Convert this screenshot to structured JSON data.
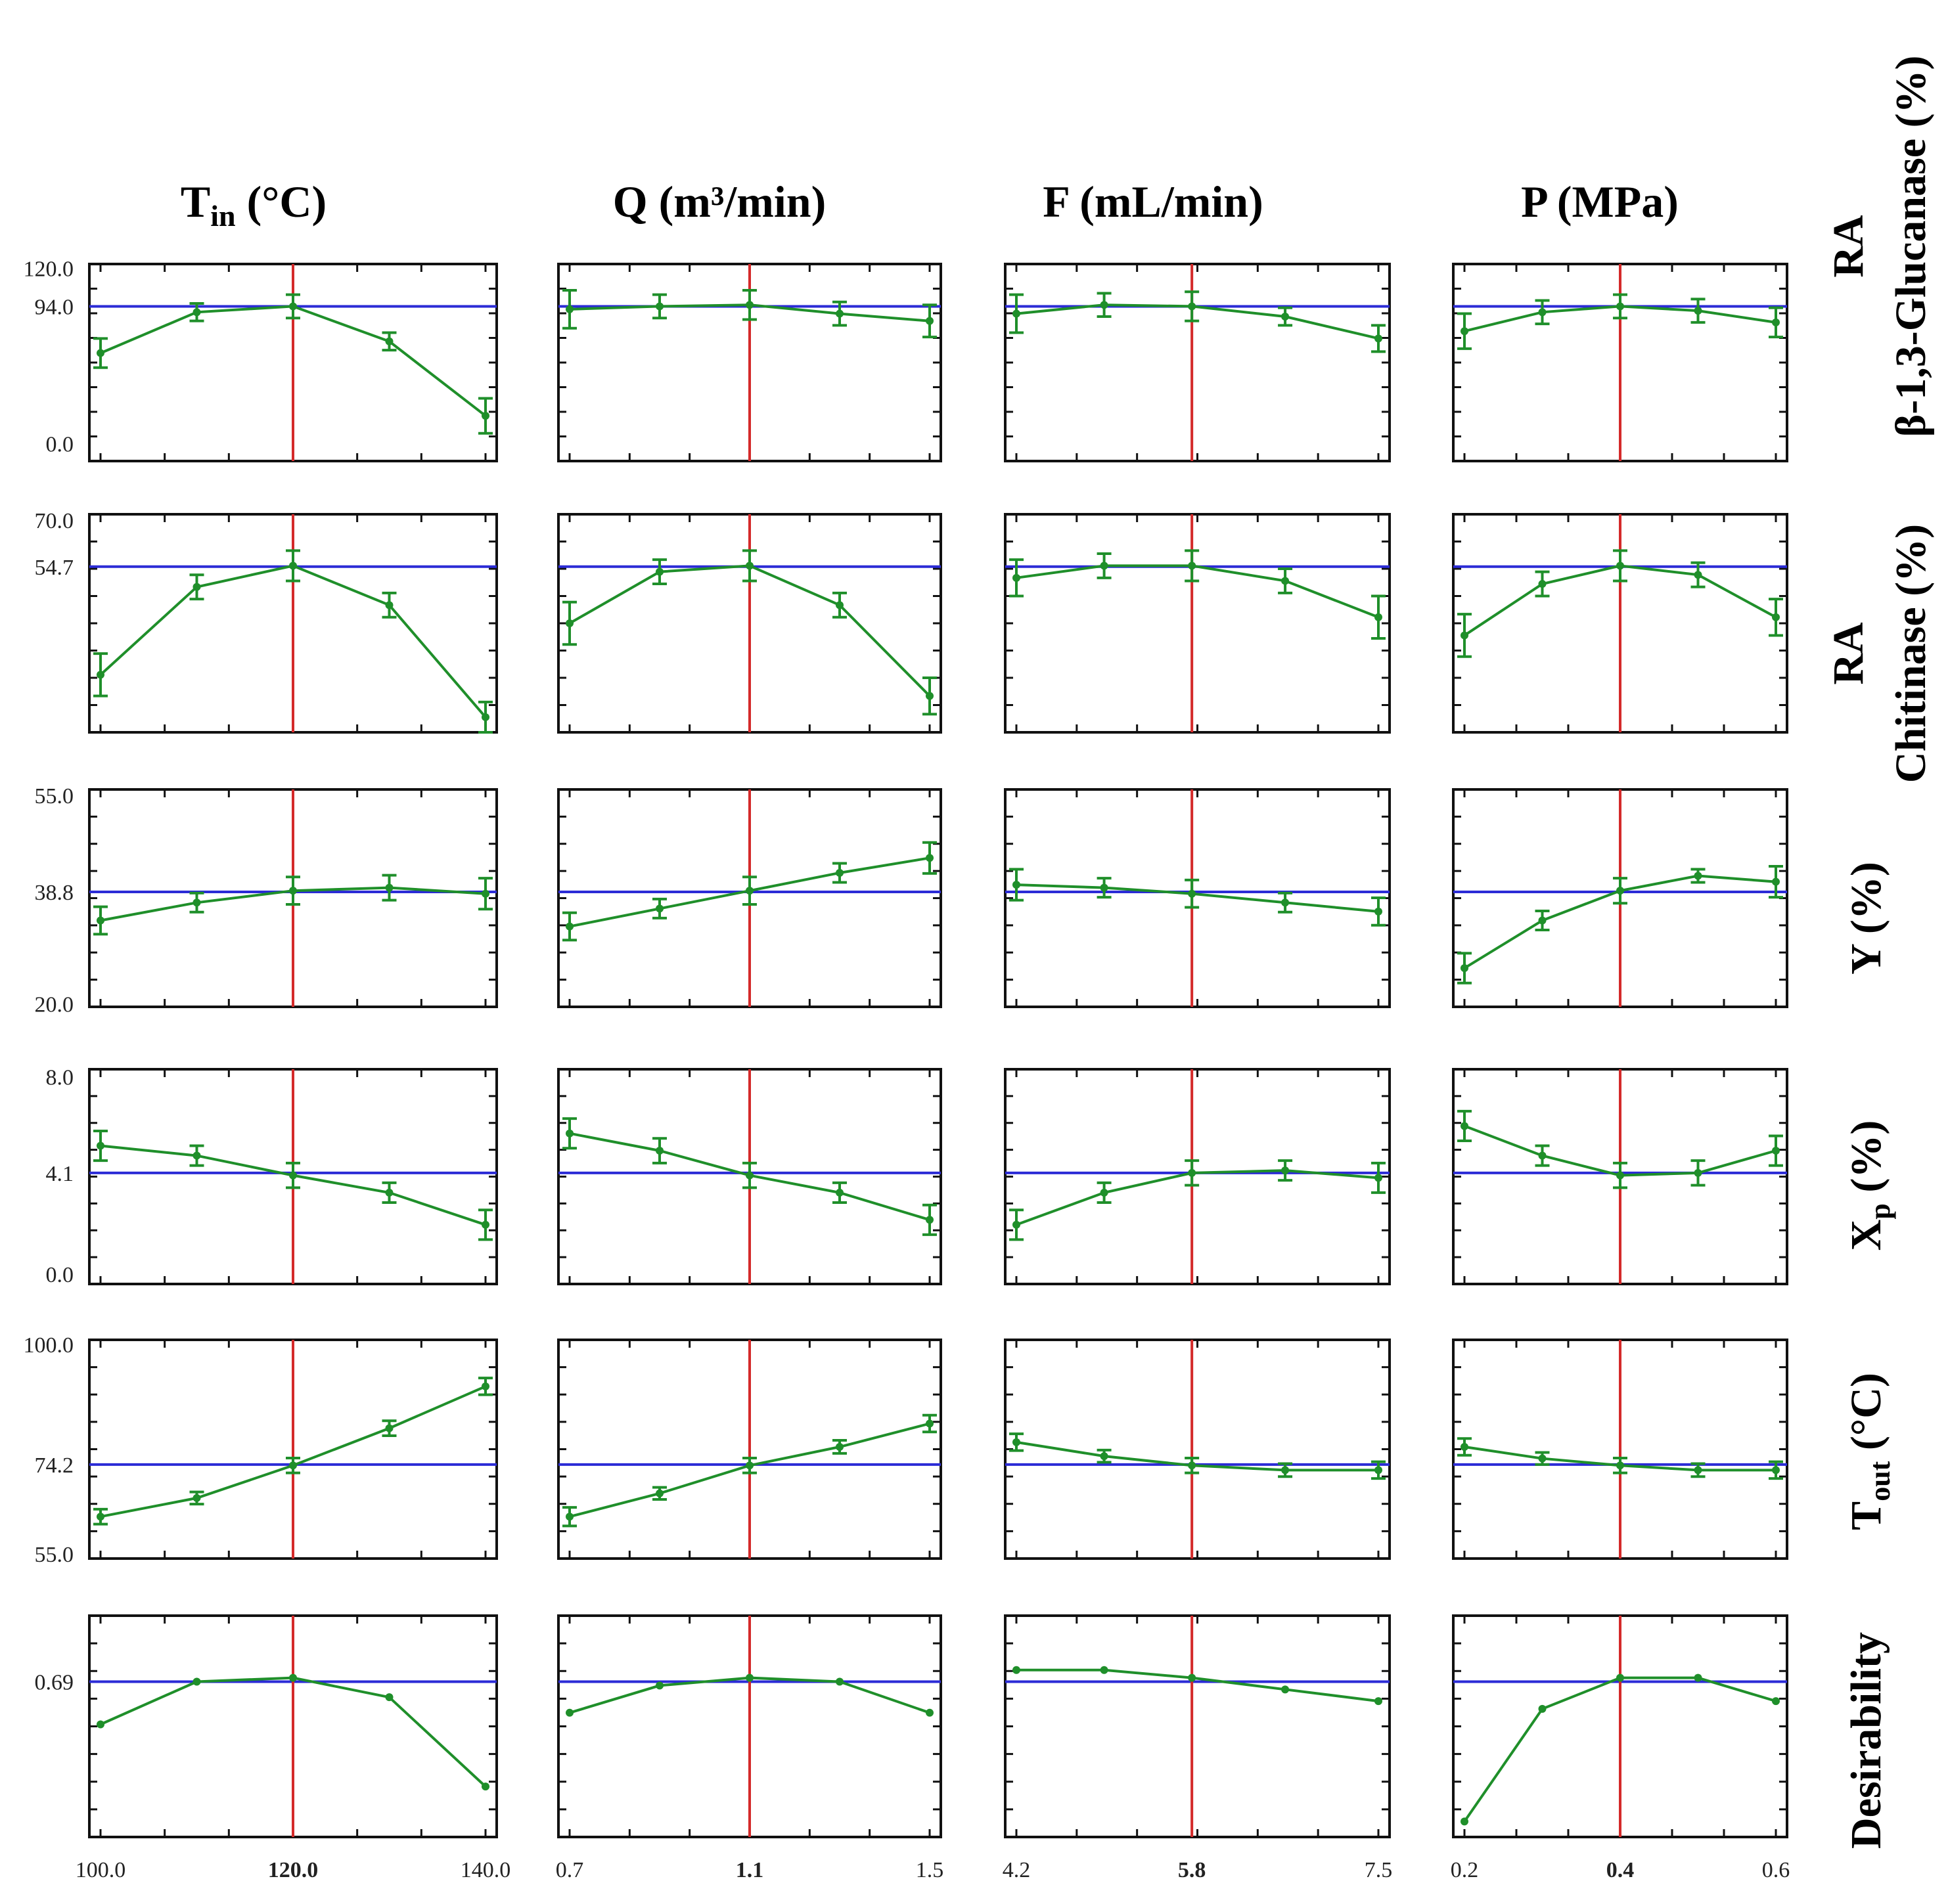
{
  "columns": [
    {
      "title_main": "T",
      "title_sub": "in",
      "title_rest": " (°C)",
      "xticks": [
        "100.0",
        "120.0",
        "140.0"
      ],
      "opt": "120.0"
    },
    {
      "title_main": "Q (m³/min)",
      "title_sub": "",
      "title_rest": "",
      "xticks": [
        "0.7",
        "1.1",
        "1.5"
      ],
      "opt": "1.1"
    },
    {
      "title_main": "F (mL/min)",
      "title_sub": "",
      "title_rest": "",
      "xticks": [
        "4.2",
        "5.8",
        "7.5"
      ],
      "opt": "5.8"
    },
    {
      "title_main": "P (MPa)",
      "title_sub": "",
      "title_rest": "",
      "xticks": [
        "0.2",
        "0.4",
        "0.6"
      ],
      "opt": "0.4"
    }
  ],
  "rows": [
    {
      "label_line1": "RA",
      "label_line2": "β-1,3-Glucanase (%)",
      "yticks": [
        "120.0",
        "94.0",
        "0.0"
      ]
    },
    {
      "label_line1": "RA",
      "label_line2": "Chitinase (%)",
      "yticks": [
        "70.0",
        "54.7",
        ""
      ]
    },
    {
      "label_line1": "",
      "label_line2": "Y (%)",
      "yticks": [
        "55.0",
        "38.8",
        "20.0"
      ]
    },
    {
      "label_line1": "",
      "label_line2": "X",
      "label_sub": "p",
      "label_rest": " (%)",
      "yticks": [
        "8.0",
        "4.1",
        "0.0"
      ]
    },
    {
      "label_line1": "",
      "label_line2": "T",
      "label_sub": "out",
      "label_rest": " (°C)",
      "yticks": [
        "100.0",
        "74.2",
        "55.0"
      ]
    },
    {
      "label_line1": "",
      "label_line2": "Desirability",
      "yticks": [
        "",
        "0.69",
        ""
      ]
    }
  ],
  "chart_data": {
    "type": "line",
    "description_type": "profiles-for-predicted-values-and-desirability",
    "colors": {
      "series": "#1f8f2a",
      "current_value": "#2b2bd6",
      "optimum": "#d42a2a"
    },
    "factors": [
      {
        "name": "Tin (°C)",
        "levels": [
          100,
          110,
          120,
          130,
          140
        ],
        "optimum": 120
      },
      {
        "name": "Q (m³/min)",
        "levels": [
          0.7,
          0.9,
          1.1,
          1.3,
          1.5
        ],
        "optimum": 1.1
      },
      {
        "name": "F (mL/min)",
        "levels": [
          4.2,
          5.0,
          5.8,
          6.65,
          7.5
        ],
        "optimum": 5.8
      },
      {
        "name": "P (MPa)",
        "levels": [
          0.2,
          0.3,
          0.4,
          0.5,
          0.6
        ],
        "optimum": 0.4
      }
    ],
    "responses": [
      {
        "name": "RA β-1,3-Glucanase (%)",
        "ylim": [
          -12,
          123
        ],
        "current": 94.0,
        "values": [
          [
            62,
            90,
            94,
            70,
            19
          ],
          [
            92,
            94,
            95,
            89,
            84
          ],
          [
            89,
            95,
            94,
            87,
            72
          ],
          [
            77,
            90,
            94,
            91,
            83
          ]
        ],
        "err": [
          [
            10,
            6,
            8,
            6,
            12
          ],
          [
            13,
            8,
            10,
            8,
            11
          ],
          [
            13,
            8,
            10,
            6,
            9
          ],
          [
            12,
            8,
            8,
            8,
            10
          ]
        ]
      },
      {
        "name": "RA Chitinase (%)",
        "ylim": [
          0,
          72
        ],
        "current": 54.7,
        "values": [
          [
            19,
            48,
            55,
            42,
            5
          ],
          [
            36,
            53,
            55,
            42,
            12
          ],
          [
            51,
            55,
            55,
            50,
            38
          ],
          [
            32,
            49,
            55,
            52,
            38
          ]
        ],
        "err": [
          [
            7,
            4,
            5,
            4,
            5
          ],
          [
            7,
            4,
            5,
            4,
            6
          ],
          [
            6,
            4,
            5,
            4,
            7
          ],
          [
            7,
            4,
            5,
            4,
            6
          ]
        ]
      },
      {
        "name": "Y (%)",
        "ylim": [
          19.5,
          56
        ],
        "current": 38.8,
        "values": [
          [
            34,
            37,
            39,
            39.5,
            38.5
          ],
          [
            33,
            36,
            39,
            42,
            44.5
          ],
          [
            40,
            39.5,
            38.5,
            37,
            35.5
          ],
          [
            26,
            34,
            39,
            41.5,
            40.5
          ]
        ],
        "err": [
          [
            2.3,
            1.6,
            2.3,
            2.1,
            2.6
          ],
          [
            2.3,
            1.6,
            2.3,
            1.6,
            2.6
          ],
          [
            2.6,
            1.6,
            2.3,
            1.6,
            2.3
          ],
          [
            2.5,
            1.6,
            2.1,
            1.1,
            2.6
          ]
        ]
      },
      {
        "name": "Xp (%)",
        "ylim": [
          -0.4,
          8.3
        ],
        "current": 4.1,
        "values": [
          [
            5.2,
            4.8,
            4.0,
            3.3,
            2.0
          ],
          [
            5.7,
            5.0,
            4.0,
            3.3,
            2.2
          ],
          [
            2.0,
            3.3,
            4.1,
            4.2,
            3.9
          ],
          [
            6.0,
            4.8,
            4.0,
            4.1,
            5.0
          ]
        ],
        "err": [
          [
            0.6,
            0.4,
            0.5,
            0.4,
            0.6
          ],
          [
            0.6,
            0.5,
            0.5,
            0.4,
            0.6
          ],
          [
            0.6,
            0.4,
            0.5,
            0.4,
            0.6
          ],
          [
            0.6,
            0.4,
            0.5,
            0.5,
            0.6
          ]
        ]
      },
      {
        "name": "Tout (°C)",
        "ylim": [
          54,
          101
        ],
        "current": 74.2,
        "values": [
          [
            63,
            67,
            74,
            82,
            91
          ],
          [
            63,
            68,
            74,
            78,
            83
          ],
          [
            79,
            76,
            74,
            73,
            73
          ],
          [
            78,
            75.5,
            74,
            73,
            73
          ]
        ],
        "err": [
          [
            1.6,
            1.3,
            1.6,
            1.6,
            1.8
          ],
          [
            2.0,
            1.3,
            1.6,
            1.4,
            1.8
          ],
          [
            1.8,
            1.3,
            1.6,
            1.4,
            1.8
          ],
          [
            1.8,
            1.3,
            1.6,
            1.4,
            1.8
          ]
        ]
      },
      {
        "name": "Desirability",
        "ylim": [
          0.29,
          0.86
        ],
        "current": 0.69,
        "values": [
          [
            0.58,
            0.69,
            0.7,
            0.65,
            0.42
          ],
          [
            0.61,
            0.68,
            0.7,
            0.69,
            0.61
          ],
          [
            0.72,
            0.72,
            0.7,
            0.67,
            0.64
          ],
          [
            0.33,
            0.62,
            0.7,
            0.7,
            0.64
          ]
        ],
        "err": null
      }
    ]
  }
}
